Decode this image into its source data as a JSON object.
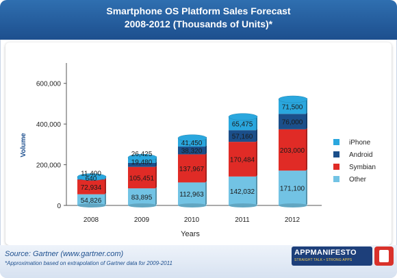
{
  "header": {
    "title": "Smartphone OS Platform Sales Forecast",
    "subtitle": "2008-2012 (Thousands of Units)*"
  },
  "footer": {
    "source": "Source: Gartner (www.gartner.com)",
    "note": "*Approximation based on extrapolation of Gartner data for 2009-2011",
    "logo_text": "APPMANIFESTO",
    "logo_tagline": "STRAIGHT TALK • STRONG APPS"
  },
  "colors": {
    "iPhone": "#2aa7de",
    "Android": "#1b4f8a",
    "Symbian": "#e02b26",
    "Other": "#72c3e4"
  },
  "chart_data": {
    "type": "bar",
    "stacked": true,
    "title": "Smartphone OS Platform Sales Forecast",
    "subtitle": "2008-2012 (Thousands of Units)*",
    "xlabel": "Years",
    "ylabel": "Volume",
    "ylim": [
      0,
      700000
    ],
    "yticks": [
      "0",
      "200,000",
      "400,000",
      "600,000"
    ],
    "categories": [
      "2008",
      "2009",
      "2010",
      "2011",
      "2012"
    ],
    "legend_position": "right",
    "series": [
      {
        "name": "Other",
        "values": [
          54826,
          83895,
          112963,
          142032,
          171100
        ],
        "labels": [
          "54,826",
          "83,895",
          "112,963",
          "142,032",
          "171,100"
        ]
      },
      {
        "name": "Symbian",
        "values": [
          72934,
          105451,
          137967,
          170484,
          203000
        ],
        "labels": [
          "72,934",
          "105,451",
          "137,967",
          "170,484",
          "203,000"
        ]
      },
      {
        "name": "Android",
        "values": [
          640,
          19480,
          38320,
          57160,
          76000
        ],
        "labels": [
          "640",
          "19,480",
          "38,320",
          "57,160",
          "76,000"
        ]
      },
      {
        "name": "iPhone",
        "values": [
          11400,
          26425,
          41450,
          65475,
          71500
        ],
        "labels": [
          "11,400",
          "26,425",
          "41,450",
          "65,475",
          "71,500"
        ]
      }
    ],
    "legend": [
      "iPhone",
      "Android",
      "Symbian",
      "Other"
    ]
  }
}
